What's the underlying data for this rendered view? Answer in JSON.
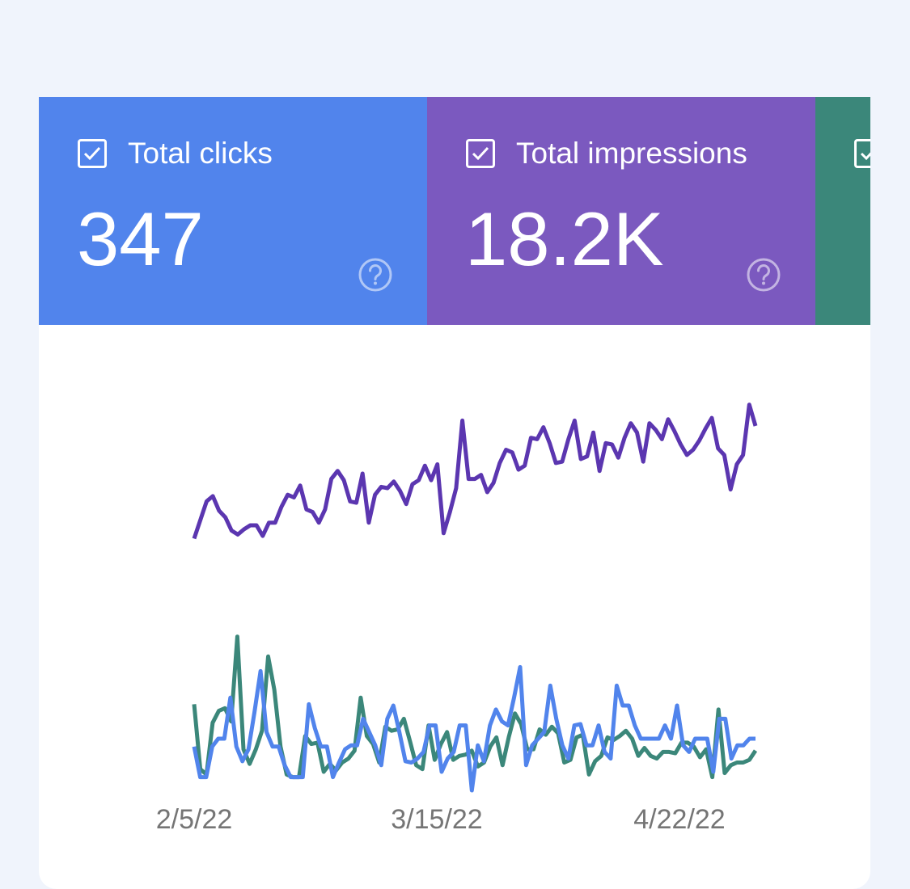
{
  "metrics": [
    {
      "label": "Total clicks",
      "value": "347",
      "color": "#5184ec",
      "checked": true
    },
    {
      "label": "Total impressions",
      "value": "18.2K",
      "color": "#7b59bf",
      "checked": true
    },
    {
      "label": "",
      "value": "",
      "color": "#3b877a",
      "checked": true
    }
  ],
  "chart_data": {
    "type": "line",
    "x_tick_labels": [
      "2/5/22",
      "3/15/22",
      "4/22/22"
    ],
    "grid": false,
    "legend": "none",
    "series": [
      {
        "color": "#3b877a",
        "values": [
          56,
          7,
          3,
          42,
          51,
          53,
          43,
          107,
          22,
          11,
          22,
          36,
          92,
          67,
          24,
          3,
          1,
          1,
          32,
          26,
          27,
          5,
          11,
          6,
          12,
          15,
          21,
          61,
          32,
          26,
          12,
          39,
          36,
          37,
          45,
          28,
          10,
          7,
          40,
          14,
          26,
          35,
          14,
          17,
          18,
          21,
          9,
          12,
          24,
          31,
          10,
          31,
          49,
          41,
          22,
          22,
          37,
          33,
          39,
          34,
          12,
          14,
          31,
          33,
          3,
          13,
          17,
          31,
          29,
          32,
          36,
          30,
          17,
          23,
          17,
          15,
          20,
          20,
          19,
          27,
          27,
          24,
          16,
          22,
          1,
          52,
          4,
          10,
          12,
          12,
          14,
          21
        ]
      },
      {
        "color": "#5184ec",
        "values": [
          24,
          1,
          1,
          24,
          30,
          30,
          61,
          24,
          13,
          22,
          50,
          81,
          35,
          24,
          24,
          10,
          1,
          1,
          1,
          56,
          38,
          24,
          24,
          1,
          12,
          22,
          25,
          25,
          45,
          35,
          25,
          10,
          45,
          55,
          35,
          13,
          12,
          15,
          20,
          40,
          40,
          5,
          15,
          20,
          40,
          40,
          -9,
          25,
          13,
          40,
          52,
          43,
          40,
          61,
          84,
          10,
          25,
          30,
          35,
          70,
          45,
          25,
          15,
          40,
          41,
          25,
          25,
          40,
          20,
          15,
          70,
          55,
          55,
          40,
          30,
          30,
          30,
          30,
          40,
          30,
          55,
          25,
          20,
          30,
          30,
          30,
          5,
          45,
          45,
          15,
          25,
          25,
          30,
          30
        ]
      },
      {
        "color": "#5b36b0",
        "values": [
          181,
          195,
          209,
          213,
          202,
          197,
          187,
          184,
          188,
          191,
          191,
          183,
          193,
          193,
          205,
          214,
          212,
          221,
          203,
          201,
          193,
          203,
          226,
          232,
          225,
          209,
          208,
          230,
          193,
          214,
          220,
          219,
          224,
          217,
          207,
          222,
          225,
          236,
          225,
          237,
          185,
          201,
          219,
          270,
          226,
          226,
          229,
          216,
          223,
          238,
          248,
          246,
          233,
          236,
          257,
          256,
          265,
          253,
          238,
          239,
          256,
          270,
          241,
          243,
          261,
          232,
          253,
          252,
          242,
          257,
          268,
          261,
          239,
          268,
          263,
          256,
          271,
          262,
          252,
          244,
          248,
          255,
          264,
          272,
          249,
          244,
          218,
          237,
          244,
          282,
          266
        ]
      }
    ]
  }
}
